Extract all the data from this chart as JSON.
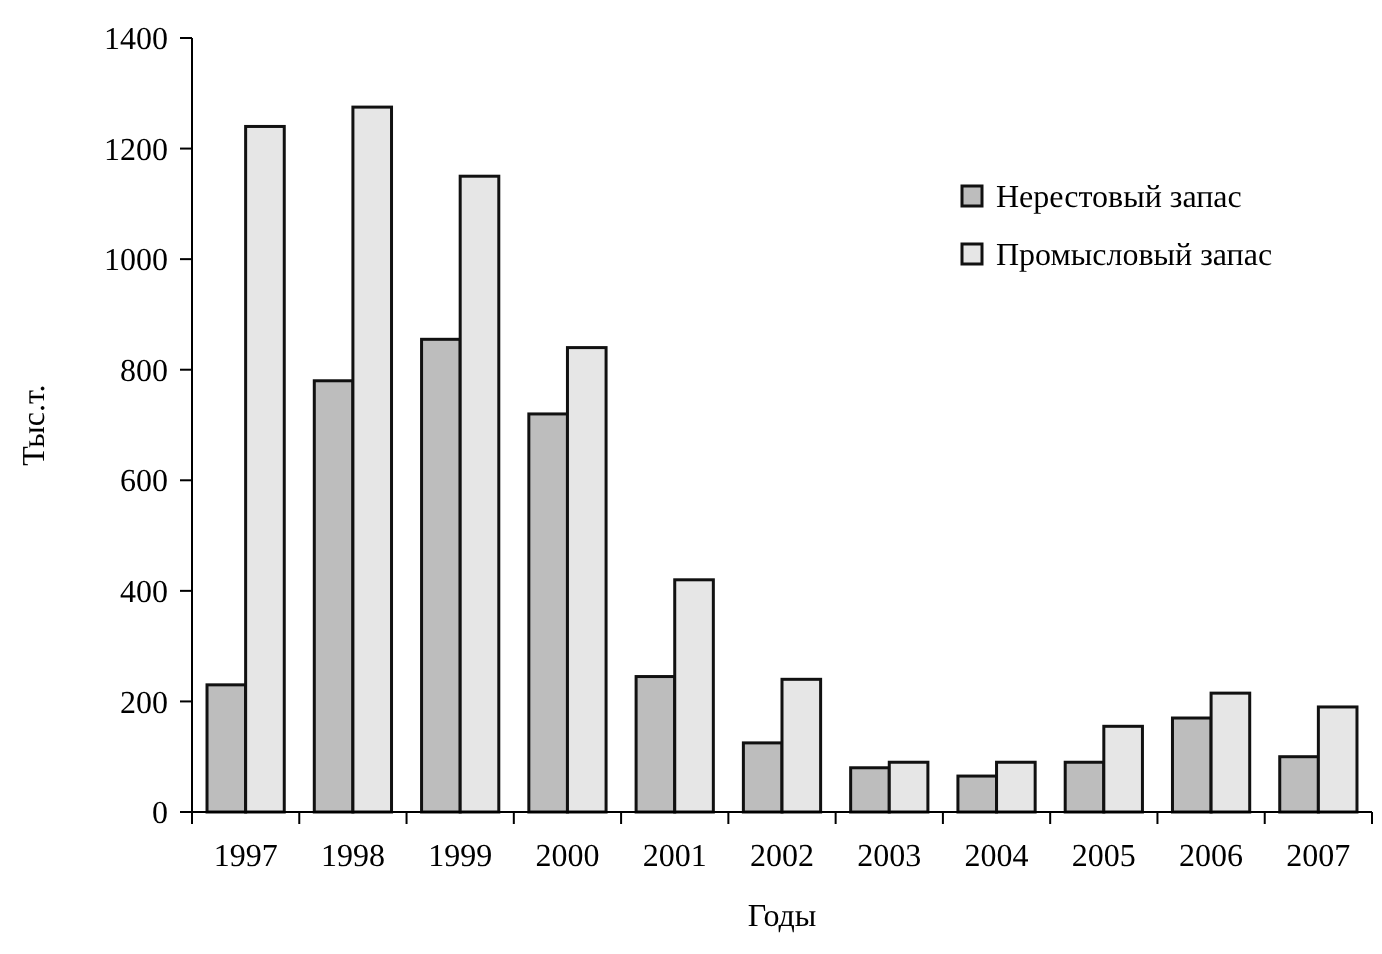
{
  "chart_data": {
    "type": "bar",
    "xlabel": "Годы",
    "ylabel": "Тыс.т.",
    "categories": [
      "1997",
      "1998",
      "1999",
      "2000",
      "2001",
      "2002",
      "2003",
      "2004",
      "2005",
      "2006",
      "2007"
    ],
    "series": [
      {
        "name": "Нерестовый запас",
        "color": "#bdbdbd",
        "values": [
          230,
          780,
          855,
          720,
          245,
          125,
          80,
          65,
          90,
          170,
          100
        ]
      },
      {
        "name": "Промысловый запас",
        "color": "#e6e6e6",
        "values": [
          1240,
          1275,
          1150,
          840,
          420,
          240,
          90,
          90,
          155,
          215,
          190
        ]
      }
    ],
    "ylim": [
      0,
      1400
    ],
    "yticks": [
      0,
      200,
      400,
      600,
      800,
      1000,
      1200,
      1400
    ],
    "legend": "top right"
  }
}
